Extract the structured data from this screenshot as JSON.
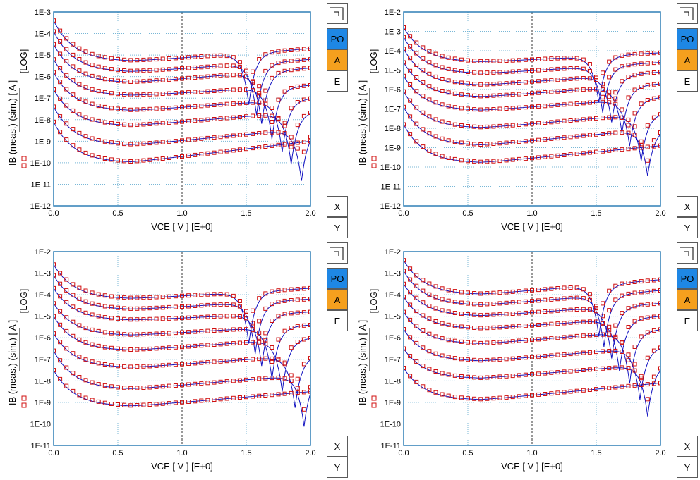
{
  "panels": [
    {
      "name": "top-left",
      "ylim_exp": [
        -12,
        -3
      ],
      "y_ticks": [
        "1E-12",
        "1E-11",
        "1E-10",
        "1E-9",
        "1E-8",
        "1E-7",
        "1E-6",
        "1E-5",
        "1E-4",
        "1E-3"
      ]
    },
    {
      "name": "top-right",
      "ylim_exp": [
        -12,
        -2
      ],
      "y_ticks": [
        "1E-12",
        "1E-11",
        "1E-10",
        "1E-9",
        "1E-8",
        "1E-7",
        "1E-6",
        "1E-5",
        "1E-4",
        "1E-3",
        "1E-2"
      ]
    },
    {
      "name": "bottom-left",
      "ylim_exp": [
        -11,
        -2
      ],
      "y_ticks": [
        "1E-11",
        "1E-10",
        "1E-9",
        "1E-8",
        "1E-7",
        "1E-6",
        "1E-5",
        "1E-4",
        "1E-3",
        "1E-2"
      ]
    },
    {
      "name": "bottom-right",
      "ylim_exp": [
        -11,
        -2
      ],
      "y_ticks": [
        "1E-11",
        "1E-10",
        "1E-9",
        "1E-8",
        "1E-7",
        "1E-6",
        "1E-5",
        "1E-4",
        "1E-3",
        "1E-2"
      ]
    }
  ],
  "labels": {
    "ylabel_main": "IB (meas.)  (sim.) [ A ]",
    "ylabel_unit": "[LOG]",
    "xlabel": "VCE [ V ]  [E+0]",
    "x_ticks": [
      "0.0",
      "0.5",
      "1.0",
      "1.5",
      "2.0"
    ]
  },
  "buttons": {
    "po": "PO",
    "a": "A",
    "e": "E",
    "x": "X",
    "y": "Y"
  },
  "colors": {
    "meas": "#d01010",
    "sim": "#1010c0",
    "grid": "#79b7d6",
    "po": "#1e87e5",
    "a": "#f5a01e"
  },
  "chart_data": [
    {
      "type": "scatter",
      "xlabel": "VCE [ V ]  [E+0]",
      "ylabel": "IB (meas.) (sim.) [ A ]",
      "yscale": "log",
      "xlim": [
        0,
        2
      ],
      "ylim": [
        1e-12,
        0.001
      ],
      "series": [
        {
          "start": -3.4,
          "plateau": -5.3,
          "end": -4.7
        },
        {
          "start": -3.9,
          "plateau": -5.8,
          "end": -5.2
        },
        {
          "start": -4.5,
          "plateau": -6.3,
          "end": -5.6
        },
        {
          "start": -5.2,
          "plateau": -6.9,
          "end": -6.4
        },
        {
          "start": -5.8,
          "plateau": -7.6,
          "end": -7.0
        },
        {
          "start": -6.6,
          "plateau": -8.3,
          "end": -7.6
        },
        {
          "start": -7.4,
          "plateau": -9.2,
          "end": -8.4
        },
        {
          "start": -8.1,
          "plateau": -10.0,
          "end": -9.0
        }
      ]
    },
    {
      "type": "scatter",
      "xlabel": "VCE [ V ]  [E+0]",
      "ylabel": "IB (meas.) (sim.) [ A ]",
      "yscale": "log",
      "xlim": [
        0,
        2
      ],
      "ylim": [
        1e-12,
        0.01
      ],
      "series": [
        {
          "start": -2.8,
          "plateau": -4.6,
          "end": -4.1
        },
        {
          "start": -3.3,
          "plateau": -5.2,
          "end": -4.6
        },
        {
          "start": -3.9,
          "plateau": -5.8,
          "end": -5.1
        },
        {
          "start": -4.6,
          "plateau": -6.4,
          "end": -5.7
        },
        {
          "start": -5.3,
          "plateau": -7.1,
          "end": -6.4
        },
        {
          "start": -6.1,
          "plateau": -8.0,
          "end": -7.2
        },
        {
          "start": -6.9,
          "plateau": -8.9,
          "end": -8.0
        },
        {
          "start": -7.8,
          "plateau": -9.8,
          "end": -8.9
        }
      ]
    },
    {
      "type": "scatter",
      "xlabel": "VCE [ V ]  [E+0]",
      "ylabel": "IB (meas.) (sim.) [ A ]",
      "yscale": "log",
      "xlim": [
        0,
        2
      ],
      "ylim": [
        1e-11,
        0.01
      ],
      "series": [
        {
          "start": -2.6,
          "plateau": -4.2,
          "end": -3.7
        },
        {
          "start": -3.1,
          "plateau": -4.7,
          "end": -4.2
        },
        {
          "start": -3.7,
          "plateau": -5.2,
          "end": -4.8
        },
        {
          "start": -4.4,
          "plateau": -5.9,
          "end": -5.4
        },
        {
          "start": -5.0,
          "plateau": -6.6,
          "end": -6.0
        },
        {
          "start": -5.8,
          "plateau": -7.4,
          "end": -6.8
        },
        {
          "start": -6.6,
          "plateau": -8.4,
          "end": -7.7
        },
        {
          "start": -7.5,
          "plateau": -9.2,
          "end": -8.5
        }
      ]
    },
    {
      "type": "scatter",
      "xlabel": "VCE [ V ]  [E+0]",
      "ylabel": "IB (meas.) (sim.) [ A ]",
      "yscale": "log",
      "xlim": [
        0,
        2
      ],
      "ylim": [
        1e-11,
        0.01
      ],
      "series": [
        {
          "start": -2.4,
          "plateau": -4.0,
          "end": -3.3
        },
        {
          "start": -2.9,
          "plateau": -4.5,
          "end": -3.8
        },
        {
          "start": -3.5,
          "plateau": -5.0,
          "end": -4.4
        },
        {
          "start": -4.1,
          "plateau": -5.6,
          "end": -5.0
        },
        {
          "start": -4.8,
          "plateau": -6.3,
          "end": -5.6
        },
        {
          "start": -5.6,
          "plateau": -7.1,
          "end": -6.4
        },
        {
          "start": -6.5,
          "plateau": -7.9,
          "end": -7.2
        },
        {
          "start": -7.4,
          "plateau": -8.9,
          "end": -8.1
        }
      ]
    }
  ]
}
